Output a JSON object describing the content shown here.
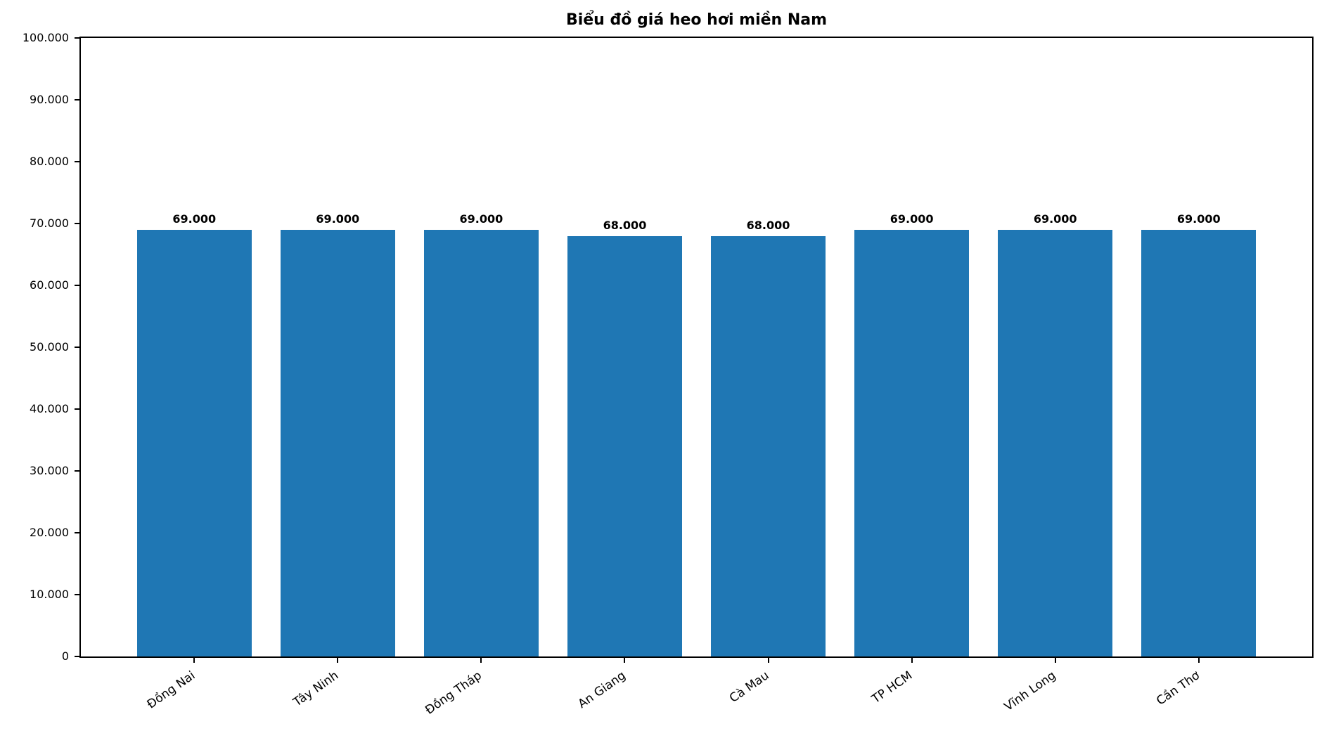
{
  "chart_data": {
    "type": "bar",
    "title": "Biểu đồ giá heo hơi miền Nam",
    "categories": [
      "Đồng Nai",
      "Tây Ninh",
      "Đồng Tháp",
      "An Giang",
      "Cà Mau",
      "TP HCM",
      "Vĩnh Long",
      "Cần Thơ"
    ],
    "values": [
      69000,
      69000,
      69000,
      68000,
      68000,
      69000,
      69000,
      69000
    ],
    "bar_labels": [
      "69.000",
      "69.000",
      "69.000",
      "68.000",
      "68.000",
      "69.000",
      "69.000",
      "69.000"
    ],
    "y_ticks": [
      {
        "value": 100000,
        "label": "100.000"
      },
      {
        "value": 90000,
        "label": "90.000"
      },
      {
        "value": 80000,
        "label": "80.000"
      },
      {
        "value": 70000,
        "label": "70.000"
      },
      {
        "value": 60000,
        "label": "60.000"
      },
      {
        "value": 50000,
        "label": "50.000"
      },
      {
        "value": 40000,
        "label": "40.000"
      },
      {
        "value": 30000,
        "label": "30.000"
      },
      {
        "value": 20000,
        "label": "20.000"
      },
      {
        "value": 10000,
        "label": "10.000"
      },
      {
        "value": 0,
        "label": "0"
      }
    ],
    "ylim": [
      0,
      100000
    ],
    "xlabel": "",
    "ylabel": "",
    "bar_color": "#1f77b4",
    "axis_color": "#000000",
    "grid": false,
    "legend_position": "none"
  }
}
